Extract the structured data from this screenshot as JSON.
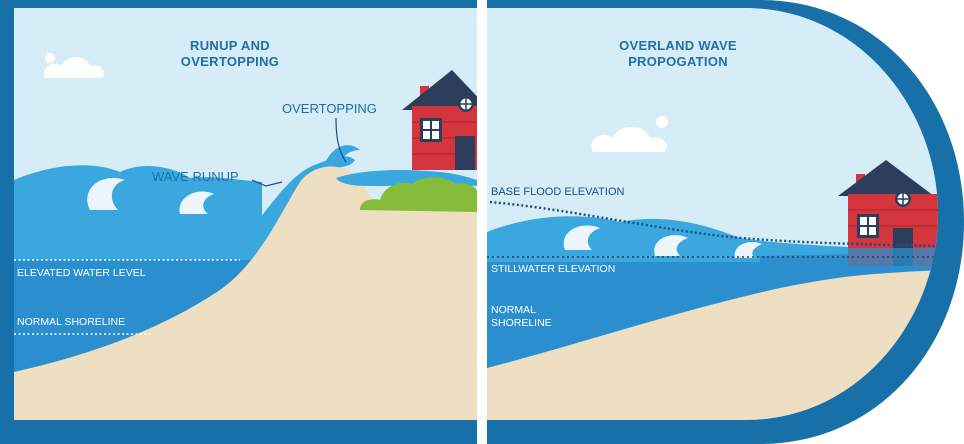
{
  "panels": {
    "left": {
      "title_line1": "RUNUP AND",
      "title_line2": "OVERTOPPING",
      "labels": {
        "overtopping": "OVERTOPPING",
        "wave_runup": "WAVE RUNUP",
        "elevated_water_level": "ELEVATED WATER LEVEL",
        "normal_shoreline": "NORMAL SHORELINE"
      }
    },
    "right": {
      "title_line1": "OVERLAND WAVE",
      "title_line2": "PROPOGATION",
      "labels": {
        "base_flood_elevation": "BASE FLOOD ELEVATION",
        "stillwater_elevation": "STILLWATER ELEVATION",
        "normal_shoreline_line1": "NORMAL",
        "normal_shoreline_line2": "SHORELINE"
      }
    }
  },
  "colors": {
    "sky": "#d6ecf7",
    "frame": "#1770a8",
    "water": "#3aa8df",
    "water_deep": "#2b8fcf",
    "sand": "#efdfc2",
    "house": "#d5363d",
    "grass": "#85bc3b"
  }
}
